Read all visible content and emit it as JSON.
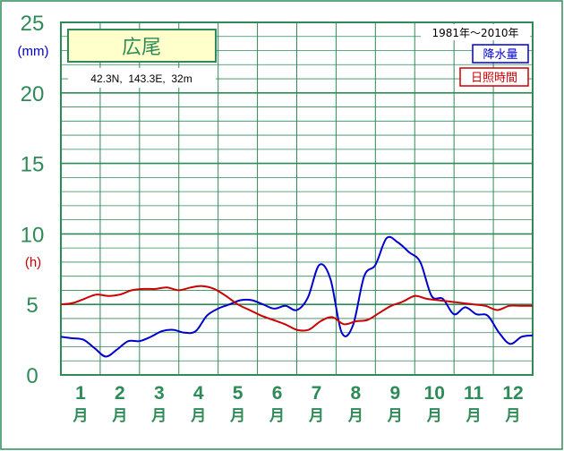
{
  "colors": {
    "frame": "#2e8b57",
    "grid": "#2e8b57",
    "axis_text": "#2e8b57",
    "precip": "#0000cc",
    "sunshine": "#cc0000",
    "title_box_bg": "#ffffcc"
  },
  "chart_data": {
    "type": "line",
    "station": "広尾",
    "location": "42.3N,  143.3E,  32m",
    "period": "1981年〜2010年",
    "y_units": [
      "(mm)",
      "(h)"
    ],
    "ylim": [
      0,
      25
    ],
    "yticks": [
      "0",
      "5",
      "10",
      "15",
      "20",
      "25"
    ],
    "months": [
      "1",
      "2",
      "3",
      "4",
      "5",
      "6",
      "7",
      "8",
      "9",
      "10",
      "11",
      "12"
    ],
    "month_suffix": "月",
    "series": [
      {
        "name": "降水量",
        "values": [
          2.7,
          2.6,
          2.5,
          1.9,
          1.3,
          1.8,
          2.4,
          2.4,
          2.7,
          3.1,
          3.2,
          3.0,
          3.1,
          4.2,
          4.7,
          5.0,
          5.3,
          5.3,
          5.0,
          4.7,
          4.9,
          4.6,
          5.5,
          7.8,
          6.8,
          3.0,
          3.5,
          7.0,
          7.8,
          9.7,
          9.4,
          8.7,
          8.0,
          5.6,
          5.4,
          4.3,
          4.8,
          4.3,
          4.2,
          3.0,
          2.2,
          2.7,
          2.8
        ]
      },
      {
        "name": "日照時間",
        "values": [
          5.0,
          5.1,
          5.4,
          5.7,
          5.6,
          5.7,
          6.0,
          6.1,
          6.1,
          6.2,
          6.0,
          6.2,
          6.3,
          6.1,
          5.6,
          5.0,
          4.6,
          4.2,
          3.9,
          3.6,
          3.2,
          3.2,
          3.8,
          4.1,
          3.6,
          3.8,
          3.9,
          4.4,
          4.9,
          5.2,
          5.6,
          5.4,
          5.3,
          5.2,
          5.1,
          5.0,
          4.9,
          4.6,
          4.9,
          4.9,
          4.9
        ]
      }
    ]
  }
}
